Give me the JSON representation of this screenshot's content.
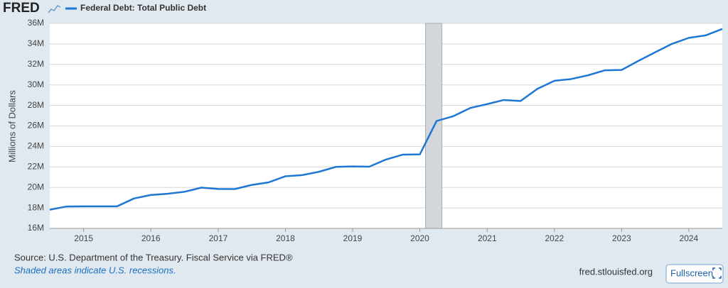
{
  "branding": {
    "logo": "FRED",
    "link": "fred.stlouisfed.org",
    "button": "Fullscreen"
  },
  "chart_data": {
    "type": "line",
    "y_label": "Millions of Dollars",
    "source": "Source: U.S. Department of the Treasury. Fiscal Service via FRED®",
    "note": "Shaded areas indicate U.S. recessions.",
    "x": [
      "2014-07-01",
      "2014-10-01",
      "2015-01-01",
      "2015-04-01",
      "2015-07-01",
      "2015-10-01",
      "2016-01-01",
      "2016-04-01",
      "2016-07-01",
      "2016-10-01",
      "2017-01-01",
      "2017-04-01",
      "2017-07-01",
      "2017-10-01",
      "2018-01-01",
      "2018-04-01",
      "2018-07-01",
      "2018-10-01",
      "2019-01-01",
      "2019-04-01",
      "2019-07-01",
      "2019-10-01",
      "2020-01-01",
      "2020-04-01",
      "2020-07-01",
      "2020-10-01",
      "2021-01-01",
      "2021-04-01",
      "2021-07-01",
      "2021-10-01",
      "2022-01-01",
      "2022-04-01",
      "2022-07-01",
      "2022-10-01",
      "2023-01-01",
      "2023-04-01",
      "2023-07-01",
      "2023-10-01",
      "2024-01-01",
      "2024-04-01",
      "2024-07-01"
    ],
    "series": [
      {
        "name": "Federal Debt: Total Public Debt",
        "color": "#1f77d4",
        "values": [
          17820000,
          18140000,
          18150000,
          18150000,
          18150000,
          18920000,
          19260000,
          19380000,
          19570000,
          19980000,
          19850000,
          19840000,
          20240000,
          20490000,
          21090000,
          21200000,
          21520000,
          22000000,
          22050000,
          22020000,
          22720000,
          23200000,
          23220000,
          26480000,
          26950000,
          27750000,
          28130000,
          28530000,
          28430000,
          29620000,
          30400000,
          30570000,
          30930000,
          31420000,
          31460000,
          32330000,
          33170000,
          34000000,
          34590000,
          34830000,
          35460000
        ]
      }
    ],
    "recessions": [
      {
        "start": "2020-02-01",
        "end": "2020-04-30"
      }
    ],
    "xlim": [
      "2014-07-01",
      "2024-07-01"
    ],
    "xticks": [
      {
        "value": "2015-01-01",
        "label": "2015"
      },
      {
        "value": "2016-01-01",
        "label": "2016"
      },
      {
        "value": "2017-01-01",
        "label": "2017"
      },
      {
        "value": "2018-01-01",
        "label": "2018"
      },
      {
        "value": "2019-01-01",
        "label": "2019"
      },
      {
        "value": "2020-01-01",
        "label": "2020"
      },
      {
        "value": "2021-01-01",
        "label": "2021"
      },
      {
        "value": "2022-01-01",
        "label": "2022"
      },
      {
        "value": "2023-01-01",
        "label": "2023"
      },
      {
        "value": "2024-01-01",
        "label": "2024"
      }
    ],
    "ylim": [
      16000000,
      36000000
    ],
    "yticks": [
      {
        "value": 16000000,
        "label": "16M"
      },
      {
        "value": 18000000,
        "label": "18M"
      },
      {
        "value": 20000000,
        "label": "20M"
      },
      {
        "value": 22000000,
        "label": "22M"
      },
      {
        "value": 24000000,
        "label": "24M"
      },
      {
        "value": 26000000,
        "label": "26M"
      },
      {
        "value": 28000000,
        "label": "28M"
      },
      {
        "value": 30000000,
        "label": "30M"
      },
      {
        "value": 32000000,
        "label": "32M"
      },
      {
        "value": 34000000,
        "label": "34M"
      },
      {
        "value": 36000000,
        "label": "36M"
      }
    ],
    "grid": true
  }
}
